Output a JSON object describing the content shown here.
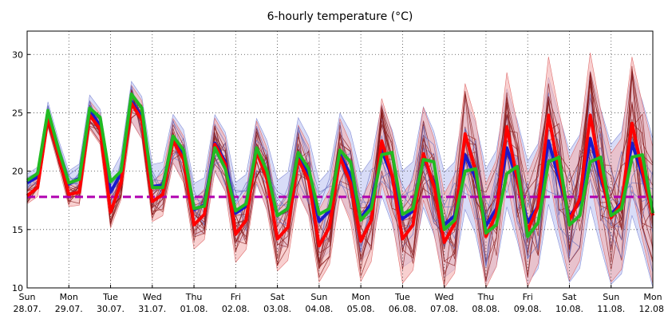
{
  "chart_data": {
    "type": "line",
    "title": "6-hourly temperature (°C)",
    "xlabel": "",
    "ylabel": "",
    "ylim": [
      10,
      32
    ],
    "yticks": [
      10,
      15,
      20,
      25,
      30
    ],
    "grid": true,
    "x_axis_unit": "day",
    "day_labels": [
      {
        "day": "Sun",
        "date": "28.07."
      },
      {
        "day": "Mon",
        "date": "29.07."
      },
      {
        "day": "Tue",
        "date": "30.07."
      },
      {
        "day": "Wed",
        "date": "31.07."
      },
      {
        "day": "Thu",
        "date": "01.08."
      },
      {
        "day": "Fri",
        "date": "02.08."
      },
      {
        "day": "Sat",
        "date": "03.08."
      },
      {
        "day": "Sun",
        "date": "04.08."
      },
      {
        "day": "Mon",
        "date": "05.08."
      },
      {
        "day": "Tue",
        "date": "06.08."
      },
      {
        "day": "Wed",
        "date": "07.08."
      },
      {
        "day": "Thu",
        "date": "08.08."
      },
      {
        "day": "Fri",
        "date": "09.08."
      },
      {
        "day": "Sat",
        "date": "10.08."
      },
      {
        "day": "Sun",
        "date": "11.08."
      },
      {
        "day": "Mon",
        "date": "12.08."
      }
    ],
    "climate_reference": 17.8,
    "colors": {
      "red_series": "#ff0000",
      "blue_series": "#1a1acc",
      "green_series": "#22bb22",
      "reference": "#b000b0",
      "red_band": "#f4b0b0",
      "blue_band": "#b8c0f0",
      "members": "#8a1a1a"
    },
    "series": [
      {
        "color_key": "red_series",
        "points": [
          [
            0,
            17.9
          ],
          [
            0.25,
            18.6
          ],
          [
            0.5,
            24.6
          ],
          [
            0.75,
            21.4
          ],
          [
            1,
            18
          ],
          [
            1.25,
            18.2
          ],
          [
            1.5,
            24.8
          ],
          [
            1.75,
            23.6
          ],
          [
            2,
            16.5
          ],
          [
            2.25,
            19.0
          ],
          [
            2.5,
            25.8
          ],
          [
            2.75,
            24.4
          ],
          [
            3,
            17.4
          ],
          [
            3.25,
            18.0
          ],
          [
            3.5,
            22.6
          ],
          [
            3.75,
            21.0
          ],
          [
            4,
            15.4
          ],
          [
            4.25,
            16.3
          ],
          [
            4.5,
            22.3
          ],
          [
            4.75,
            20.6
          ],
          [
            5,
            14.6
          ],
          [
            5.25,
            15.8
          ],
          [
            5.5,
            21.7
          ],
          [
            5.75,
            19.3
          ],
          [
            6,
            14.2
          ],
          [
            6.25,
            15.2
          ],
          [
            6.5,
            21.0
          ],
          [
            6.75,
            19.2
          ],
          [
            7,
            13.6
          ],
          [
            7.25,
            15.2
          ],
          [
            7.5,
            21.2
          ],
          [
            7.75,
            19.0
          ],
          [
            8,
            14.0
          ],
          [
            8.25,
            15.8
          ],
          [
            8.5,
            22.6
          ],
          [
            8.75,
            19.6
          ],
          [
            9,
            14.2
          ],
          [
            9.25,
            15.4
          ],
          [
            9.5,
            21.5
          ],
          [
            9.75,
            18.8
          ],
          [
            10,
            13.9
          ],
          [
            10.25,
            15.5
          ],
          [
            10.5,
            23.2
          ],
          [
            10.75,
            20.0
          ],
          [
            11,
            14.4
          ],
          [
            11.25,
            16.4
          ],
          [
            11.5,
            23.8
          ],
          [
            11.75,
            19.3
          ],
          [
            12,
            14.9
          ],
          [
            12.25,
            17.0
          ],
          [
            12.5,
            24.8
          ],
          [
            12.75,
            20.0
          ],
          [
            13,
            15.8
          ],
          [
            13.25,
            17.6
          ],
          [
            13.5,
            24.8
          ],
          [
            13.75,
            19.8
          ],
          [
            14,
            16.0
          ],
          [
            14.25,
            17.2
          ],
          [
            14.5,
            24.1
          ],
          [
            14.75,
            20.0
          ],
          [
            15,
            16.2
          ]
        ]
      },
      {
        "color_key": "blue_series",
        "points": [
          [
            0,
            19.0
          ],
          [
            0.25,
            19.5
          ],
          [
            0.5,
            25.0
          ],
          [
            0.75,
            21.7
          ],
          [
            1,
            18.9
          ],
          [
            1.25,
            19.4
          ],
          [
            1.5,
            25.2
          ],
          [
            1.75,
            23.9
          ],
          [
            2,
            18.2
          ],
          [
            2.25,
            19.8
          ],
          [
            2.5,
            26.0
          ],
          [
            2.75,
            24.6
          ],
          [
            3,
            18.7
          ],
          [
            3.25,
            18.8
          ],
          [
            3.5,
            22.8
          ],
          [
            3.75,
            21.4
          ],
          [
            4,
            16.7
          ],
          [
            4.25,
            17.1
          ],
          [
            4.5,
            22.4
          ],
          [
            4.75,
            20.8
          ],
          [
            5,
            16.4
          ],
          [
            5.25,
            17.0
          ],
          [
            5.5,
            21.7
          ],
          [
            5.75,
            19.7
          ],
          [
            6,
            16.2
          ],
          [
            6.25,
            16.8
          ],
          [
            6.5,
            21.4
          ],
          [
            6.75,
            19.6
          ],
          [
            7,
            15.7
          ],
          [
            7.25,
            16.6
          ],
          [
            7.5,
            21.4
          ],
          [
            7.75,
            19.7
          ],
          [
            8,
            16.0
          ],
          [
            8.25,
            17.2
          ],
          [
            8.5,
            21.8
          ],
          [
            8.75,
            19.5
          ],
          [
            9,
            15.9
          ],
          [
            9.25,
            16.6
          ],
          [
            9.5,
            21.2
          ],
          [
            9.75,
            19.0
          ],
          [
            10,
            15.4
          ],
          [
            10.25,
            16.2
          ],
          [
            10.5,
            21.4
          ],
          [
            10.75,
            19.4
          ],
          [
            11,
            15.3
          ],
          [
            11.25,
            16.8
          ],
          [
            11.5,
            22.0
          ],
          [
            11.75,
            19.2
          ],
          [
            12,
            15.6
          ],
          [
            12.25,
            17.0
          ],
          [
            12.5,
            22.6
          ],
          [
            12.75,
            19.3
          ],
          [
            13,
            16.1
          ],
          [
            13.25,
            17.4
          ],
          [
            13.5,
            22.8
          ],
          [
            13.75,
            19.4
          ],
          [
            14,
            16.3
          ],
          [
            14.25,
            17.3
          ],
          [
            14.5,
            22.4
          ],
          [
            14.75,
            19.7
          ],
          [
            15,
            16.4
          ]
        ]
      },
      {
        "color_key": "green_series",
        "points": [
          [
            0,
            19.2
          ],
          [
            0.25,
            19.8
          ],
          [
            0.5,
            25.2
          ],
          [
            0.75,
            21.9
          ],
          [
            1,
            19.0
          ],
          [
            1.25,
            19.3
          ],
          [
            1.5,
            25.4
          ],
          [
            1.75,
            24.6
          ],
          [
            2,
            19.1
          ],
          [
            2.25,
            20.0
          ],
          [
            2.5,
            26.6
          ],
          [
            2.75,
            25.4
          ],
          [
            3,
            18.6
          ],
          [
            3.25,
            18.6
          ],
          [
            3.5,
            23.0
          ],
          [
            3.75,
            21.8
          ],
          [
            4,
            16.8
          ],
          [
            4.25,
            17.0
          ],
          [
            4.5,
            22.0
          ],
          [
            4.75,
            20.2
          ],
          [
            5,
            16.6
          ],
          [
            5.25,
            17.2
          ],
          [
            5.5,
            22.0
          ],
          [
            5.75,
            20.0
          ],
          [
            6,
            16.2
          ],
          [
            6.25,
            16.8
          ],
          [
            6.5,
            21.6
          ],
          [
            6.75,
            20.2
          ],
          [
            7,
            16.3
          ],
          [
            7.25,
            16.8
          ],
          [
            7.5,
            21.8
          ],
          [
            7.75,
            20.8
          ],
          [
            8,
            15.8
          ],
          [
            8.25,
            16.8
          ],
          [
            8.5,
            21.4
          ],
          [
            8.75,
            21.6
          ],
          [
            9,
            16.3
          ],
          [
            9.25,
            16.8
          ],
          [
            9.5,
            21.0
          ],
          [
            9.75,
            20.8
          ],
          [
            10,
            15.0
          ],
          [
            10.25,
            15.8
          ],
          [
            10.5,
            20.0
          ],
          [
            10.75,
            20.2
          ],
          [
            11,
            14.7
          ],
          [
            11.25,
            15.4
          ],
          [
            11.5,
            19.8
          ],
          [
            11.75,
            20.4
          ],
          [
            12,
            14.4
          ],
          [
            12.25,
            15.6
          ],
          [
            12.5,
            20.8
          ],
          [
            12.75,
            21.2
          ],
          [
            13,
            15.4
          ],
          [
            13.25,
            16.2
          ],
          [
            13.5,
            20.8
          ],
          [
            13.75,
            21.2
          ],
          [
            14,
            16.2
          ],
          [
            14.25,
            16.8
          ],
          [
            14.5,
            21.2
          ],
          [
            14.75,
            21.4
          ],
          [
            15,
            16.4
          ]
        ]
      }
    ]
  }
}
